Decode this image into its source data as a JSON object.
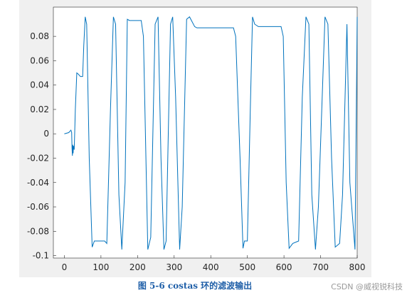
{
  "chart_data": {
    "type": "line",
    "caption": "图 5-6 costas 环的滤波输出",
    "watermark": "CSDN @威视锐科技",
    "xlim": [
      -30,
      800
    ],
    "ylim": [
      -0.102,
      0.104
    ],
    "xticks": [
      0,
      100,
      200,
      300,
      400,
      500,
      600,
      700,
      800
    ],
    "yticks": [
      -0.1,
      -0.08,
      -0.06,
      -0.04,
      -0.02,
      0,
      0.02,
      0.04,
      0.06,
      0.08
    ],
    "series": [
      {
        "color": "#0072bd",
        "x": [
          0,
          12,
          18,
          20,
          21,
          22,
          23,
          24,
          25,
          27,
          30,
          34,
          38,
          44,
          50,
          53,
          57,
          61,
          68,
          76,
          82,
          110,
          116,
          126,
          134,
          140,
          149,
          157,
          166,
          172,
          178,
          210,
          216,
          228,
          236,
          248,
          256,
          264,
          272,
          278,
          290,
          296,
          304,
          315,
          322,
          334,
          342,
          356,
          362,
          462,
          468,
          480,
          488,
          492,
          500,
          508,
          514,
          520,
          530,
          536,
          592,
          598,
          606,
          614,
          624,
          640,
          650,
          660,
          668,
          676,
          686,
          694,
          712,
          720,
          730,
          740,
          752,
          760,
          772,
          780,
          794,
          800
        ],
        "y": [
          0,
          0.001,
          0.003,
          0.001,
          -0.012,
          -0.018,
          -0.009,
          -0.016,
          -0.01,
          -0.013,
          0.02,
          0.05,
          0.049,
          0.047,
          0.047,
          0.072,
          0.096,
          0.09,
          -0.02,
          -0.093,
          -0.088,
          -0.088,
          -0.09,
          0.02,
          0.096,
          0.09,
          -0.05,
          -0.095,
          -0.04,
          0.094,
          0.093,
          0.093,
          0.08,
          -0.095,
          -0.085,
          0.09,
          0.096,
          -0.02,
          -0.095,
          -0.088,
          0.09,
          0.096,
          0.03,
          -0.095,
          -0.06,
          0.094,
          0.096,
          0.088,
          0.087,
          0.087,
          0.08,
          -0.02,
          -0.094,
          -0.088,
          -0.088,
          0.02,
          0.096,
          0.09,
          0.088,
          0.088,
          0.088,
          0.08,
          -0.04,
          -0.094,
          -0.09,
          -0.088,
          0.03,
          0.096,
          0.09,
          -0.05,
          -0.095,
          -0.06,
          0.096,
          0.09,
          -0.02,
          -0.093,
          -0.09,
          -0.05,
          0.09,
          -0.04,
          -0.095,
          0.096
        ]
      }
    ]
  }
}
